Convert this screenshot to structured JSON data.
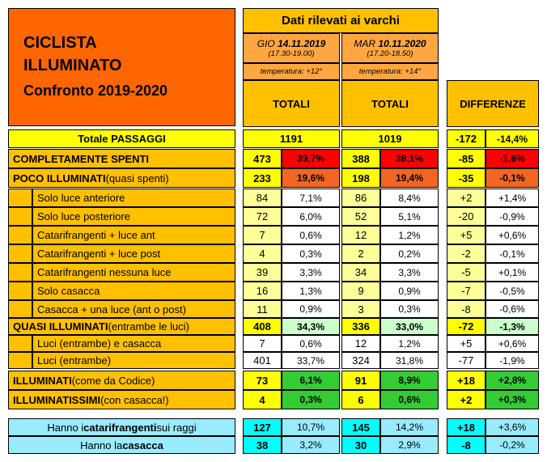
{
  "title": {
    "line1": "CICLISTA",
    "line2": "ILLUMINATO",
    "line3": "Confronto 2019-2020"
  },
  "header": {
    "main": "Dati rilevati ai varchi",
    "col2019": {
      "day": "GIO",
      "date": "14.11.2019",
      "time": "(17.30-19.00)",
      "temp": "temperatura: +12°",
      "label": "TOTALI"
    },
    "col2020": {
      "day": "MAR",
      "date": "10.11.2020",
      "time": "(17.20-18.50)",
      "temp": "temperatura: +14°",
      "label": "TOTALI"
    },
    "diff": "DIFFERENZE"
  },
  "rows": [
    {
      "label": "Totale PASSAGGI",
      "n19": "1191",
      "p19": "",
      "n20": "1019",
      "p20": "",
      "dn": "-172",
      "dp": "-14,4%"
    },
    {
      "label": "COMPLETAMENTE SPENTI",
      "n19": "473",
      "p19": "39,7%",
      "n20": "388",
      "p20": "38,1%",
      "dn": "-85",
      "dp": "-1,6%"
    },
    {
      "label": "POCO ILLUMINATI",
      "label_extra": " (quasi spenti)",
      "n19": "233",
      "p19": "19,6%",
      "n20": "198",
      "p20": "19,4%",
      "dn": "-35",
      "dp": "-0,1%"
    },
    {
      "label": "Solo luce anteriore",
      "n19": "84",
      "p19": "7,1%",
      "n20": "86",
      "p20": "8,4%",
      "dn": "+2",
      "dp": "+1,4%"
    },
    {
      "label": "Solo luce posteriore",
      "n19": "72",
      "p19": "6,0%",
      "n20": "52",
      "p20": "5,1%",
      "dn": "-20",
      "dp": "-0,9%"
    },
    {
      "label": "Catarifrangenti + luce ant",
      "n19": "7",
      "p19": "0,6%",
      "n20": "12",
      "p20": "1,2%",
      "dn": "+5",
      "dp": "+0,6%"
    },
    {
      "label": "Catarifrangenti + luce post",
      "n19": "4",
      "p19": "0,3%",
      "n20": "2",
      "p20": "0,2%",
      "dn": "-2",
      "dp": "-0,1%"
    },
    {
      "label": "Catarifrangenti nessuna luce",
      "n19": "39",
      "p19": "3,3%",
      "n20": "34",
      "p20": "3,3%",
      "dn": "-5",
      "dp": "+0,1%"
    },
    {
      "label": "Solo casacca",
      "n19": "16",
      "p19": "1,3%",
      "n20": "9",
      "p20": "0,9%",
      "dn": "-7",
      "dp": "-0,5%"
    },
    {
      "label": "Casacca + una luce (ant o post)",
      "n19": "11",
      "p19": "0,9%",
      "n20": "3",
      "p20": "0,3%",
      "dn": "-8",
      "dp": "-0,6%"
    },
    {
      "label": "QUASI ILLUMINATI",
      "label_extra": " (entrambe le luci)",
      "n19": "408",
      "p19": "34,3%",
      "n20": "336",
      "p20": "33,0%",
      "dn": "-72",
      "dp": "-1,3%"
    },
    {
      "label": "Luci (entrambe) e casacca",
      "n19": "7",
      "p19": "0,6%",
      "n20": "12",
      "p20": "1,2%",
      "dn": "+5",
      "dp": "+0,6%"
    },
    {
      "label": "Luci (entrambe)",
      "n19": "401",
      "p19": "33,7%",
      "n20": "324",
      "p20": "31,8%",
      "dn": "-77",
      "dp": "-1,9%"
    },
    {
      "label": "ILLUMINATI",
      "label_extra": " (come da Codice)",
      "n19": "73",
      "p19": "6,1%",
      "n20": "91",
      "p20": "8,9%",
      "dn": "+18",
      "dp": "+2,8%"
    },
    {
      "label": "ILLUMINATISSIMI",
      "label_extra": " (con casacca!)",
      "n19": "4",
      "p19": "0,3%",
      "n20": "6",
      "p20": "0,6%",
      "dn": "+2",
      "dp": "+0,3%"
    }
  ],
  "bottom": [
    {
      "pre": "Hanno i ",
      "bold": "catarifrangenti",
      "post": " sui raggi",
      "n19": "127",
      "p19": "10,7%",
      "n20": "145",
      "p20": "14,2%",
      "dn": "+18",
      "dp": "+3,6%"
    },
    {
      "pre": "Hanno la ",
      "bold": "casacca",
      "post": "",
      "n19": "38",
      "p19": "3,2%",
      "n20": "30",
      "p20": "2,9%",
      "dn": "-8",
      "dp": "-0,2%"
    }
  ]
}
